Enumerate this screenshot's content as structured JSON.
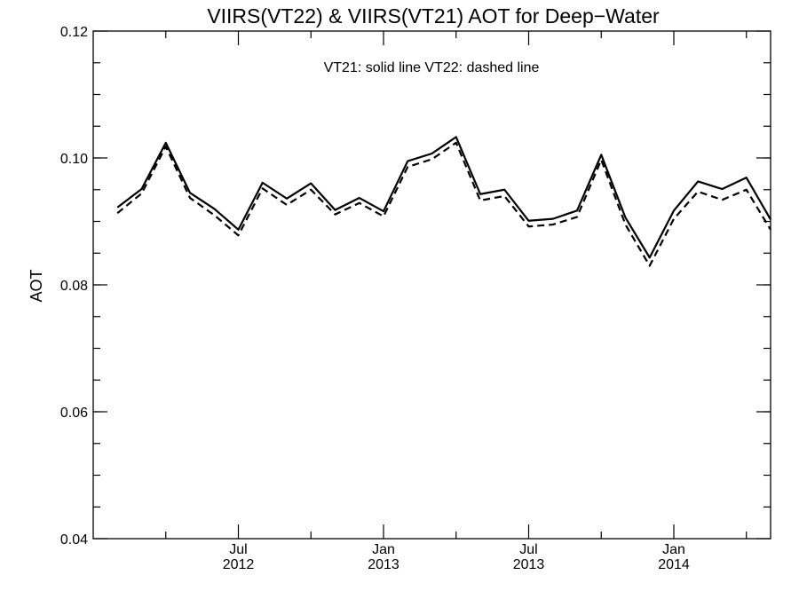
{
  "chart_data": {
    "type": "line",
    "title": "VIIRS(VT22) & VIIRS(VT21)  AOT for Deep−Water",
    "annotation": "VT21: solid line   VT22: dashed line",
    "xlabel": "",
    "ylabel": "AOT",
    "ylim": [
      0.04,
      0.12
    ],
    "xlim": [
      "2012-01",
      "2014-05"
    ],
    "grid": false,
    "y_major_ticks": [
      0.04,
      0.06,
      0.08,
      0.1,
      0.12
    ],
    "y_tick_labels": [
      "0.04",
      "0.06",
      "0.08",
      "0.10",
      "0.12"
    ],
    "y_minor_step": 0.005,
    "x_tick_labels": [
      {
        "date": "2012-07",
        "month": "Jul",
        "year": "2012"
      },
      {
        "date": "2013-01",
        "month": "Jan",
        "year": "2013"
      },
      {
        "date": "2013-07",
        "month": "Jul",
        "year": "2013"
      },
      {
        "date": "2014-01",
        "month": "Jan",
        "year": "2014"
      }
    ],
    "x": [
      "2012-02",
      "2012-03",
      "2012-04",
      "2012-05",
      "2012-06",
      "2012-07",
      "2012-08",
      "2012-09",
      "2012-10",
      "2012-11",
      "2012-12",
      "2013-01",
      "2013-02",
      "2013-03",
      "2013-04",
      "2013-05",
      "2013-06",
      "2013-07",
      "2013-08",
      "2013-09",
      "2013-10",
      "2013-11",
      "2013-12",
      "2014-01",
      "2014-02",
      "2014-03",
      "2014-04",
      "2014-05"
    ],
    "series": [
      {
        "name": "VT21",
        "style": "solid",
        "color": "#000000",
        "values": [
          0.0922,
          0.0951,
          0.1024,
          0.0945,
          0.092,
          0.0887,
          0.0961,
          0.0936,
          0.096,
          0.0918,
          0.0937,
          0.0916,
          0.0995,
          0.1007,
          0.1033,
          0.0943,
          0.095,
          0.0901,
          0.0904,
          0.0917,
          0.1005,
          0.0906,
          0.0843,
          0.0917,
          0.0963,
          0.0951,
          0.0969,
          0.0903
        ]
      },
      {
        "name": "VT22",
        "style": "dashed",
        "color": "#000000",
        "values": [
          0.0913,
          0.0944,
          0.1018,
          0.0937,
          0.091,
          0.0878,
          0.0952,
          0.0926,
          0.095,
          0.0911,
          0.0929,
          0.0908,
          0.0986,
          0.0998,
          0.1024,
          0.0933,
          0.094,
          0.0892,
          0.0895,
          0.0907,
          0.0997,
          0.0895,
          0.083,
          0.0904,
          0.0947,
          0.0934,
          0.095,
          0.0887
        ]
      }
    ]
  }
}
